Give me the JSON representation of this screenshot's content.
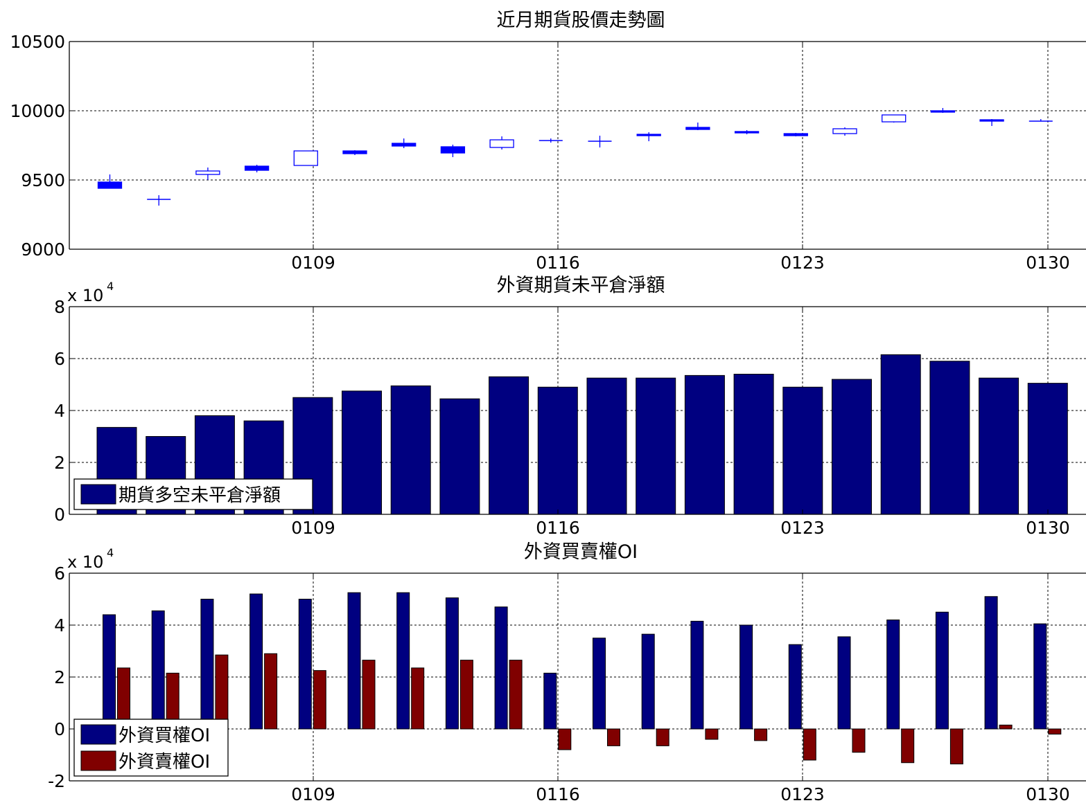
{
  "chart_data": [
    {
      "type": "candlestick",
      "title": "近月期貨股價走勢圖",
      "xlabel": "",
      "ylabel": "",
      "x_ticks": [
        "0109",
        "0116",
        "0123",
        "0130"
      ],
      "ylim": [
        9000,
        10500
      ],
      "y_ticks": [
        "9000",
        "9500",
        "10000",
        "10500"
      ],
      "grid": true,
      "up_color": "#0000ff",
      "down_color": "#0000ff",
      "candles": [
        {
          "open": 9485,
          "close": 9440,
          "high": 9540,
          "low": 9440
        },
        {
          "open": 9360,
          "close": 9360,
          "high": 9390,
          "low": 9315
        },
        {
          "open": 9540,
          "close": 9565,
          "high": 9590,
          "low": 9500
        },
        {
          "open": 9600,
          "close": 9570,
          "high": 9610,
          "low": 9555
        },
        {
          "open": 9605,
          "close": 9710,
          "high": 9710,
          "low": 9605
        },
        {
          "open": 9710,
          "close": 9690,
          "high": 9715,
          "low": 9680
        },
        {
          "open": 9765,
          "close": 9745,
          "high": 9800,
          "low": 9730
        },
        {
          "open": 9740,
          "close": 9695,
          "high": 9755,
          "low": 9665
        },
        {
          "open": 9735,
          "close": 9790,
          "high": 9815,
          "low": 9720
        },
        {
          "open": 9785,
          "close": 9785,
          "high": 9800,
          "low": 9770
        },
        {
          "open": 9780,
          "close": 9780,
          "high": 9820,
          "low": 9735
        },
        {
          "open": 9830,
          "close": 9820,
          "high": 9845,
          "low": 9780
        },
        {
          "open": 9880,
          "close": 9865,
          "high": 9915,
          "low": 9860
        },
        {
          "open": 9850,
          "close": 9840,
          "high": 9860,
          "low": 9830
        },
        {
          "open": 9835,
          "close": 9820,
          "high": 9840,
          "low": 9815
        },
        {
          "open": 9835,
          "close": 9870,
          "high": 9880,
          "low": 9820
        },
        {
          "open": 9920,
          "close": 9970,
          "high": 9970,
          "low": 9915
        },
        {
          "open": 10000,
          "close": 9990,
          "high": 10020,
          "low": 9985
        },
        {
          "open": 9935,
          "close": 9925,
          "high": 9940,
          "low": 9890
        },
        {
          "open": 9925,
          "close": 9925,
          "high": 9940,
          "low": 9925
        }
      ]
    },
    {
      "type": "bar",
      "title": "外資期貨未平倉淨額",
      "xlabel": "",
      "ylabel": "",
      "x_ticks": [
        "0109",
        "0116",
        "0123",
        "0130"
      ],
      "y_multiplier": "x 10",
      "y_multiplier_exp": "4",
      "ylim": [
        0,
        80000
      ],
      "y_ticks": [
        "0",
        "2",
        "4",
        "6",
        "8"
      ],
      "grid": true,
      "legend": {
        "placement": "bottom-left",
        "entries": [
          "期貨多空未平倉淨額"
        ]
      },
      "series": [
        {
          "name": "期貨多空未平倉淨額",
          "color": "#000080",
          "values": [
            33500,
            30000,
            38000,
            36000,
            45000,
            47500,
            49500,
            44500,
            53000,
            49000,
            52500,
            52500,
            53500,
            54000,
            49000,
            52000,
            61500,
            59000,
            52500,
            50500
          ]
        }
      ]
    },
    {
      "type": "bar",
      "title": "外資買賣權OI",
      "xlabel": "",
      "ylabel": "",
      "x_ticks": [
        "0109",
        "0116",
        "0123",
        "0130"
      ],
      "y_multiplier": "x 10",
      "y_multiplier_exp": "4",
      "ylim": [
        -20000,
        60000
      ],
      "y_ticks": [
        "-2",
        "0",
        "2",
        "4",
        "6"
      ],
      "grid": true,
      "legend": {
        "placement": "bottom-left",
        "entries": [
          "外資買權OI",
          "外資賣權OI"
        ]
      },
      "series": [
        {
          "name": "外資買權OI",
          "color": "#000080",
          "values": [
            44000,
            45500,
            50000,
            52000,
            50000,
            52500,
            52500,
            50500,
            47000,
            21500,
            35000,
            36500,
            41500,
            40000,
            32500,
            35500,
            42000,
            45000,
            51000,
            40500
          ]
        },
        {
          "name": "外資賣權OI",
          "color": "#800000",
          "values": [
            23500,
            21500,
            28500,
            29000,
            22500,
            26500,
            23500,
            26500,
            26500,
            -8000,
            -6500,
            -6500,
            -4000,
            -4500,
            -12000,
            -9000,
            -13000,
            -13500,
            1500,
            -2000
          ]
        }
      ]
    }
  ]
}
